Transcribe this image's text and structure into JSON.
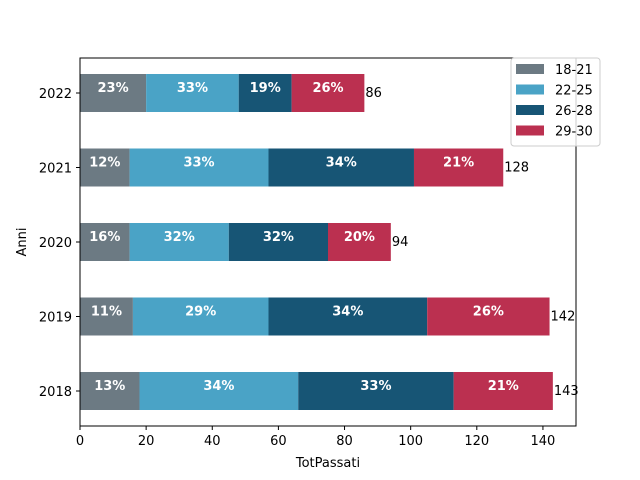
{
  "chart_data": {
    "type": "bar",
    "orientation": "horizontal",
    "stacked": true,
    "categories": [
      "2018",
      "2019",
      "2020",
      "2021",
      "2022"
    ],
    "series": [
      {
        "name": "18-21",
        "color": "#6c7a83",
        "values": [
          18,
          16,
          15,
          15,
          20
        ],
        "labels": [
          "13%",
          "11%",
          "16%",
          "12%",
          "23%"
        ]
      },
      {
        "name": "22-25",
        "color": "#4aa3c6",
        "values": [
          48,
          41,
          30,
          42,
          28
        ],
        "labels": [
          "34%",
          "29%",
          "32%",
          "33%",
          "33%"
        ]
      },
      {
        "name": "26-28",
        "color": "#175575",
        "values": [
          47,
          48,
          30,
          44,
          16
        ],
        "labels": [
          "33%",
          "34%",
          "32%",
          "34%",
          "19%"
        ]
      },
      {
        "name": "29-30",
        "color": "#bb3050",
        "values": [
          30,
          37,
          19,
          27,
          22
        ],
        "labels": [
          "21%",
          "26%",
          "20%",
          "21%",
          "26%"
        ]
      }
    ],
    "totals": [
      143,
      142,
      94,
      128,
      86
    ],
    "total_labels": [
      "143",
      "142",
      "94",
      "128",
      "86"
    ],
    "xlabel": "TotPassati",
    "ylabel": "Anni",
    "xlim": [
      0,
      150
    ],
    "xticks": [
      "0",
      "20",
      "40",
      "60",
      "80",
      "100",
      "120",
      "140"
    ],
    "grid": false,
    "legend_position": "top-right"
  }
}
